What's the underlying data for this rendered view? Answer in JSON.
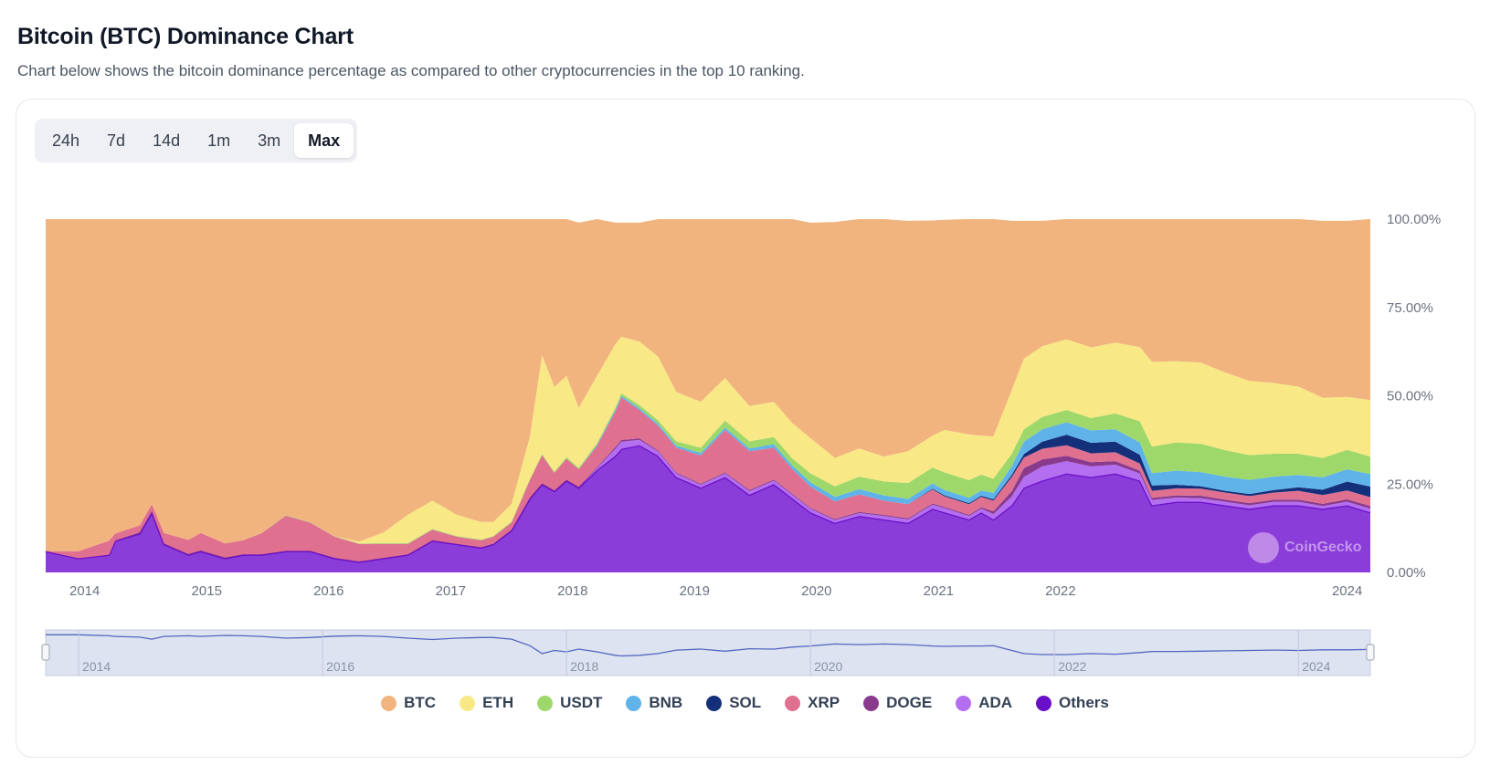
{
  "page": {
    "title": "Bitcoin (BTC) Dominance Chart",
    "subtitle": "Chart below shows the bitcoin dominance percentage as compared to other cryptocurrencies in the top 10 ranking."
  },
  "range_tabs": [
    "24h",
    "7d",
    "14d",
    "1m",
    "3m",
    "Max"
  ],
  "active_range": "Max",
  "watermark": "CoinGecko",
  "colors": {
    "BTC": "#f2b47e",
    "ETH": "#f9e886",
    "USDT": "#9fd86a",
    "BNB": "#5fb3e8",
    "SOL": "#15307a",
    "XRP": "#e07090",
    "DOGE": "#8a3a8c",
    "ADA": "#b46ef0",
    "Others": "#8a3dd9",
    "others_edge": "#6a10c8",
    "navigator_fill": "#dde3f0",
    "navigator_line": "#5566c2"
  },
  "chart_data": {
    "type": "area",
    "stacked": true,
    "percent": true,
    "ylim": [
      0,
      100
    ],
    "yticks": [
      "0.00%",
      "25.00%",
      "50.00%",
      "75.00%",
      "100.00%"
    ],
    "xlim": [
      2013.33,
      2024.19
    ],
    "xticks": [
      "2014",
      "2015",
      "2016",
      "2017",
      "2018",
      "2019",
      "2020",
      "2021",
      "2022",
      "2024"
    ],
    "navigator_ticks": [
      "2014",
      "2016",
      "2018",
      "2020",
      "2022",
      "2024"
    ],
    "legend": [
      "BTC",
      "ETH",
      "USDT",
      "BNB",
      "SOL",
      "XRP",
      "DOGE",
      "ADA",
      "Others"
    ],
    "legend_position": "bottom-center",
    "x": [
      2013.33,
      2013.6,
      2013.85,
      2013.9,
      2014.1,
      2014.2,
      2014.3,
      2014.5,
      2014.6,
      2014.8,
      2014.95,
      2015.1,
      2015.3,
      2015.5,
      2015.7,
      2015.9,
      2016.1,
      2016.3,
      2016.5,
      2016.7,
      2016.9,
      2017.0,
      2017.15,
      2017.3,
      2017.4,
      2017.5,
      2017.6,
      2017.7,
      2017.85,
      2018.0,
      2018.05,
      2018.2,
      2018.35,
      2018.5,
      2018.7,
      2018.9,
      2019.1,
      2019.3,
      2019.45,
      2019.6,
      2019.8,
      2020.0,
      2020.2,
      2020.4,
      2020.6,
      2020.7,
      2020.9,
      2021.0,
      2021.1,
      2021.25,
      2021.35,
      2021.5,
      2021.7,
      2021.9,
      2022.1,
      2022.3,
      2022.4,
      2022.6,
      2022.8,
      2023.0,
      2023.2,
      2023.4,
      2023.6,
      2023.8,
      2024.0,
      2024.19
    ],
    "series": [
      {
        "name": "Others",
        "values": [
          6,
          4,
          5,
          9,
          11,
          17,
          8,
          5,
          6,
          4,
          5,
          5,
          6,
          6,
          4,
          3,
          4,
          5,
          9,
          8,
          7,
          8,
          12,
          21,
          25,
          23,
          26,
          24,
          29,
          33,
          35,
          36,
          33,
          27,
          24,
          27,
          22,
          25,
          21,
          17,
          14,
          16,
          15,
          14,
          18,
          17,
          15,
          17,
          15,
          19,
          24,
          26,
          28,
          27,
          28,
          26,
          19,
          20,
          20,
          19,
          18,
          19,
          19,
          18,
          19,
          17
        ]
      },
      {
        "name": "ADA",
        "values": [
          0,
          0,
          0,
          0,
          0,
          0,
          0,
          0,
          0,
          0,
          0,
          0,
          0,
          0,
          0,
          0,
          0,
          0,
          0,
          0,
          0,
          0,
          0,
          0,
          0,
          0,
          0,
          0,
          0.5,
          2,
          2,
          1.5,
          1.2,
          1,
          0.8,
          1,
          1,
          1,
          1,
          1,
          0.8,
          0.8,
          1,
          1,
          1.2,
          1.2,
          1,
          1,
          1.5,
          2.5,
          3,
          4,
          3.5,
          3,
          2.5,
          2,
          1.5,
          1.2,
          1,
          1,
          1,
          1,
          1,
          0.8,
          1,
          1
        ]
      },
      {
        "name": "DOGE",
        "values": [
          0,
          0,
          0,
          0,
          0.3,
          0.3,
          0.2,
          0.2,
          0.2,
          0.2,
          0.1,
          0.1,
          0.1,
          0.1,
          0.1,
          0.1,
          0.1,
          0.1,
          0.1,
          0.1,
          0.1,
          0.1,
          0.1,
          0.2,
          0.2,
          0.2,
          0.2,
          0.2,
          0.3,
          0.5,
          0.5,
          0.4,
          0.3,
          0.3,
          0.3,
          0.3,
          0.3,
          0.3,
          0.3,
          0.3,
          0.3,
          0.3,
          0.3,
          0.3,
          0.3,
          0.3,
          0.3,
          0.4,
          0.8,
          1.5,
          2.5,
          2,
          1.5,
          1.2,
          1,
          0.8,
          0.6,
          0.6,
          0.7,
          0.6,
          0.6,
          0.6,
          0.6,
          0.6,
          0.7,
          0.8
        ]
      },
      {
        "name": "XRP",
        "values": [
          0,
          2,
          4,
          2,
          2,
          2,
          3,
          4,
          5,
          4,
          4,
          6,
          10,
          8,
          6,
          5,
          4,
          3,
          3,
          2,
          2,
          2,
          2,
          5,
          8,
          5,
          6,
          5,
          6,
          10,
          12,
          8,
          7,
          7,
          8,
          12,
          11,
          9,
          7,
          6,
          5,
          5,
          4,
          4,
          4,
          3,
          3,
          3,
          3,
          4,
          3,
          3,
          3,
          2.5,
          2.5,
          2,
          2,
          2,
          2,
          2,
          2,
          2,
          2.5,
          2.5,
          2.5,
          2.5
        ]
      },
      {
        "name": "SOL",
        "values": [
          0,
          0,
          0,
          0,
          0,
          0,
          0,
          0,
          0,
          0,
          0,
          0,
          0,
          0,
          0,
          0,
          0,
          0,
          0,
          0,
          0,
          0,
          0,
          0,
          0,
          0,
          0,
          0,
          0,
          0,
          0,
          0,
          0,
          0,
          0,
          0,
          0,
          0,
          0,
          0,
          0,
          0,
          0,
          0,
          0.2,
          0.3,
          0.3,
          0.3,
          0.4,
          0.6,
          1,
          2,
          3,
          3,
          3,
          2.5,
          1.5,
          1,
          0.7,
          0.5,
          0.6,
          0.7,
          1,
          1.5,
          2.5,
          3
        ]
      },
      {
        "name": "BNB",
        "values": [
          0,
          0,
          0,
          0,
          0,
          0,
          0,
          0,
          0,
          0,
          0,
          0,
          0,
          0,
          0,
          0,
          0,
          0,
          0,
          0,
          0,
          0,
          0,
          0,
          0,
          0,
          0,
          0,
          0.3,
          0.5,
          0.5,
          0.5,
          0.6,
          0.6,
          0.7,
          0.7,
          0.8,
          1,
          1,
          1.2,
          1.3,
          1.5,
          1.5,
          1.5,
          1.5,
          1.5,
          1.5,
          1.5,
          1.8,
          2.5,
          3.5,
          3.5,
          3.5,
          3.5,
          3.5,
          3.5,
          3.5,
          4,
          4,
          4,
          4,
          3.8,
          3.5,
          3.5,
          3.5,
          3.5
        ]
      },
      {
        "name": "USDT",
        "values": [
          0,
          0,
          0,
          0,
          0,
          0,
          0,
          0,
          0,
          0,
          0,
          0.1,
          0.1,
          0.1,
          0.1,
          0.1,
          0.2,
          0.2,
          0.2,
          0.2,
          0.2,
          0.2,
          0.3,
          0.3,
          0.3,
          0.3,
          0.4,
          0.4,
          0.5,
          0.6,
          0.7,
          0.9,
          1,
          1.2,
          1.5,
          2,
          2,
          2,
          2,
          2.5,
          3,
          3.5,
          4,
          4.5,
          4.5,
          5,
          5,
          4.5,
          4,
          3.5,
          3.5,
          3.5,
          3.5,
          3.5,
          4.5,
          6,
          7.5,
          8,
          8,
          7.5,
          7,
          6.5,
          6,
          5.5,
          5.5,
          5
        ]
      },
      {
        "name": "ETH",
        "values": [
          0,
          0,
          0,
          0,
          0,
          0,
          0,
          0,
          0,
          0,
          0,
          0,
          0,
          0,
          0,
          0.5,
          3,
          8,
          8,
          6,
          5,
          4,
          5,
          12,
          28,
          24,
          23,
          17,
          19,
          18,
          16,
          18,
          18,
          14,
          13,
          12,
          10,
          10,
          10,
          10,
          8,
          8,
          7,
          9,
          9,
          12,
          13,
          11,
          12,
          18,
          20,
          20,
          20,
          20,
          20,
          21,
          24,
          23,
          23,
          22,
          21,
          20,
          19,
          17,
          15,
          16
        ]
      },
      {
        "name": "BTC",
        "values": [
          94,
          94,
          91,
          89,
          86.7,
          80.7,
          88.8,
          90.8,
          88.8,
          91.8,
          90.9,
          88.8,
          83.8,
          85.8,
          89.8,
          91.4,
          88.7,
          83.7,
          79.7,
          83.7,
          85.7,
          85.7,
          80.6,
          61.5,
          38.5,
          47.5,
          44.4,
          52.4,
          44.4,
          34.4,
          32.3,
          33.7,
          38.9,
          48.9,
          51.7,
          46,
          52.9,
          51.7,
          57.7,
          61.0,
          66.8,
          64.9,
          67.2,
          65.2,
          60.9,
          59.5,
          60.9,
          61.3,
          61.5,
          47.9,
          39.0,
          35.5,
          35.5,
          39.3,
          37.0,
          42.2,
          45.4,
          45.2,
          45.6,
          47.4,
          48.4,
          49.1,
          48.4,
          50.1,
          49.8,
          51.2
        ]
      }
    ],
    "navigator_btc": [
      94,
      94,
      91,
      89,
      87,
      81,
      89,
      91,
      89,
      92,
      91,
      89,
      84,
      86,
      90,
      91,
      89,
      84,
      80,
      84,
      86,
      86,
      81,
      62,
      39,
      48,
      44,
      52,
      44,
      34,
      32,
      34,
      39,
      49,
      52,
      46,
      53,
      52,
      58,
      61,
      67,
      65,
      67,
      65,
      61,
      60,
      61,
      61,
      62,
      48,
      39,
      36,
      36,
      39,
      37,
      42,
      45,
      45,
      46,
      47,
      48,
      49,
      48,
      50,
      50,
      51
    ]
  }
}
